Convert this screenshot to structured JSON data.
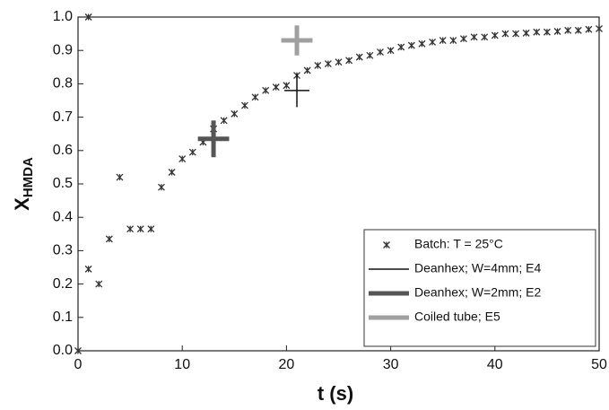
{
  "chart_data": {
    "type": "scatter",
    "xlabel": "t (s)",
    "ylabel": "X",
    "ylabel_subscript": "HMDA",
    "xlim": [
      0,
      50
    ],
    "xticks": [
      0,
      10,
      20,
      30,
      40,
      50
    ],
    "ylim": [
      0,
      1
    ],
    "yticks": [
      {
        "value": 0,
        "label": "0.0"
      },
      0.1,
      0.2,
      0.3,
      0.4,
      0.5,
      0.6,
      0.7,
      0.8,
      0.9,
      {
        "value": 1,
        "label": "1.0"
      }
    ],
    "legend": "lower right",
    "series": [
      {
        "name": "Batch: T = 25°C",
        "color": "#333333",
        "marker": "asterisk",
        "x": [
          0,
          1,
          1,
          2,
          3,
          4,
          5,
          6,
          7,
          8,
          9,
          10,
          11,
          12,
          13,
          14,
          15,
          16,
          17,
          18,
          19,
          20,
          21,
          22,
          23,
          24,
          25,
          26,
          27,
          28,
          29,
          30,
          31,
          32,
          33,
          34,
          35,
          36,
          37,
          38,
          39,
          40,
          41,
          42,
          43,
          44,
          45,
          46,
          47,
          48,
          49,
          50
        ],
        "values": [
          0,
          1,
          0.245,
          0.2,
          0.335,
          0.52,
          0.365,
          0.365,
          0.365,
          0.49,
          0.535,
          0.575,
          0.595,
          0.625,
          0.665,
          0.69,
          0.71,
          0.735,
          0.76,
          0.78,
          0.79,
          0.795,
          0.825,
          0.84,
          0.855,
          0.86,
          0.865,
          0.87,
          0.88,
          0.885,
          0.895,
          0.9,
          0.91,
          0.915,
          0.92,
          0.925,
          0.93,
          0.93,
          0.935,
          0.94,
          0.94,
          0.945,
          0.95,
          0.95,
          0.952,
          0.955,
          0.955,
          0.957,
          0.96,
          0.96,
          0.963,
          0.965
        ]
      },
      {
        "name": "Deanhex; W=4mm; E4",
        "color": "#111111",
        "marker": "cross",
        "width": 1.5,
        "x": [
          21
        ],
        "values": [
          0.78
        ],
        "xerr": [
          1.2
        ],
        "yerr": [
          0.05
        ]
      },
      {
        "name": "Deanhex; W=2mm; E2",
        "color": "#555555",
        "marker": "cross",
        "width": 5,
        "x": [
          13
        ],
        "values": [
          0.635
        ],
        "xerr": [
          1.5
        ],
        "yerr": [
          0.055
        ]
      },
      {
        "name": "Coiled tube; E5",
        "color": "#a0a0a0",
        "marker": "cross",
        "width": 5,
        "x": [
          21
        ],
        "values": [
          0.93
        ],
        "xerr": [
          1.5
        ],
        "yerr": [
          0.045
        ]
      }
    ]
  }
}
